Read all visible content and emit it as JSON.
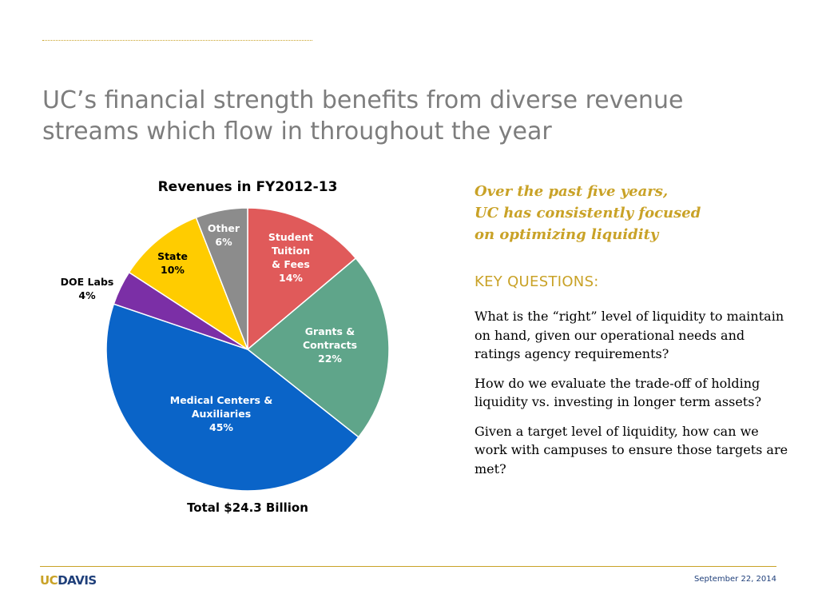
{
  "slide": {
    "title_lines": [
      "UC’s financial strength benefits from diverse revenue",
      "streams which flow in throughout the year"
    ],
    "subtitle_lines": [
      "Over the past five years,",
      "UC has consistently focused",
      "on optimizing liquidity"
    ],
    "key_questions_heading": "KEY QUESTIONS:",
    "questions": [
      "What is the “right” level of liquidity to maintain on hand, given our operational needs and ratings agency requirements?",
      "How do we evaluate the trade-off of holding liquidity vs. investing in longer term assets?",
      "Given a target level of liquidity, how can we work with campuses to ensure those targets are met?"
    ],
    "footer": {
      "logo_uc": "UC",
      "logo_davis": "DAVIS",
      "date": "September 22, 2014"
    },
    "colors": {
      "accent_gold": "#C9A227",
      "title_gray": "#7d7d7d",
      "brand_blue": "#1F3F7A"
    }
  },
  "chart_data": {
    "type": "pie",
    "title": "Revenues in FY2012-13",
    "total_label": "Total $24.3 Billion",
    "slices": [
      {
        "label_lines": [
          "Student",
          "Tuition",
          "& Fees"
        ],
        "percent_label": "14%",
        "value": 14,
        "color": "#E05A5A",
        "label_color": "#ffffff"
      },
      {
        "label_lines": [
          "Grants &",
          "Contracts"
        ],
        "percent_label": "22%",
        "value": 22,
        "color": "#5FA58A",
        "label_color": "#ffffff"
      },
      {
        "label_lines": [
          "Medical Centers &",
          "Auxiliaries"
        ],
        "percent_label": "45%",
        "value": 45,
        "color": "#0A64C8",
        "label_color": "#ffffff"
      },
      {
        "label_lines": [
          "DOE Labs"
        ],
        "percent_label": "4%",
        "value": 4,
        "color": "#7B2FA6",
        "label_color": "#000000"
      },
      {
        "label_lines": [
          "State"
        ],
        "percent_label": "10%",
        "value": 10,
        "color": "#FFCC00",
        "label_color": "#000000"
      },
      {
        "label_lines": [
          "Other"
        ],
        "percent_label": "6%",
        "value": 6,
        "color": "#8C8C8C",
        "label_color": "#ffffff"
      }
    ]
  }
}
